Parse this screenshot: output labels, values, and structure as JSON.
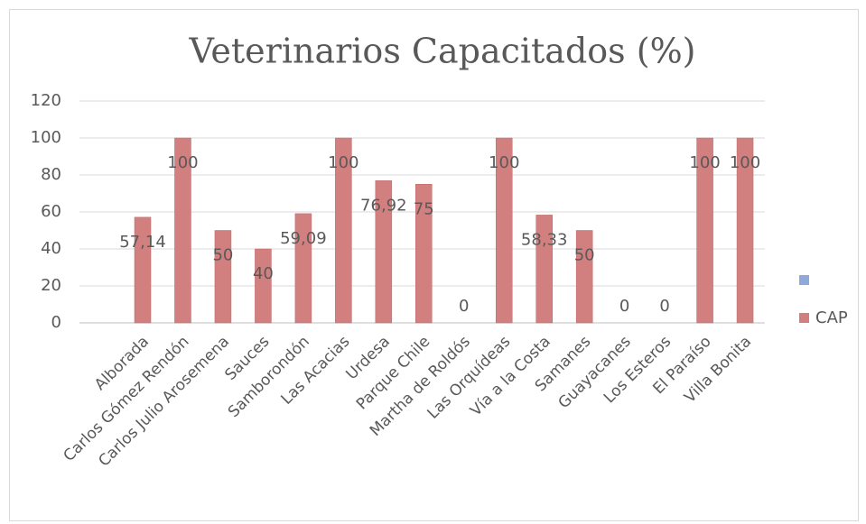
{
  "chart_data": {
    "type": "bar",
    "title": "Veterinarios Capacitados (%)",
    "categories": [
      "Alborada",
      "Carlos Gómez Rendón",
      "Carlos Julio Arosemena",
      "Sauces",
      "Samborondón",
      "Las Acacias",
      "Urdesa",
      "Parque Chile",
      "Martha de Roldós",
      "Las Orquídeas",
      "Vía a la Costa",
      "Samanes",
      "Guayacanes",
      "Los Esteros",
      "El Paraíso",
      "Villa Bonita"
    ],
    "series": [
      {
        "color": "#8eaadb",
        "values": [
          null,
          null,
          null,
          null,
          null,
          null,
          null,
          null,
          null,
          null,
          null,
          null,
          null,
          null,
          null,
          null
        ]
      },
      {
        "name": "CAP",
        "color": "#d27f7f",
        "values": [
          57.14,
          100,
          50,
          40,
          59.09,
          100,
          76.92,
          75,
          0,
          100,
          58.33,
          50,
          0,
          0,
          100,
          100
        ],
        "value_labels": [
          "57,14",
          "100",
          "50",
          "40",
          "59,09",
          "100",
          "76,92",
          "75",
          "0",
          "100",
          "58,33",
          "50",
          "0",
          "0",
          "100",
          "100"
        ]
      }
    ],
    "ylim": [
      0,
      120
    ],
    "yticks": [
      0,
      20,
      40,
      60,
      80,
      100,
      120
    ],
    "grid": true,
    "legend": "right"
  }
}
